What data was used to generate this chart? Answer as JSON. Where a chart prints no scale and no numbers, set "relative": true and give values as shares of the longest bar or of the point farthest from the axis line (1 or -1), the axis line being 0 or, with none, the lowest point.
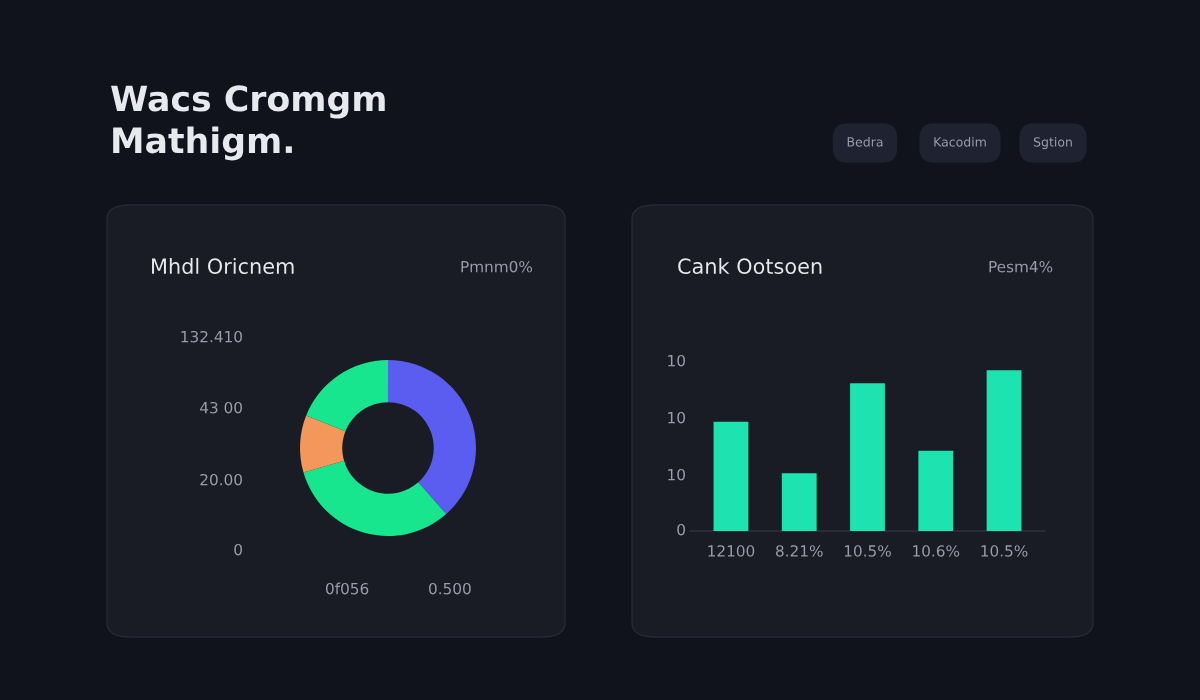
{
  "chart_data": [
    {
      "type": "other",
      "title": "Wacs Cromgm\nMathigm.",
      "annotations": [
        "Bedra",
        "Kacodim",
        "Sgtion"
      ]
    },
    {
      "type": "donut",
      "title": "Mhdl Oricnem",
      "categories": [
        null,
        null,
        null,
        null
      ],
      "values": [
        38.5,
        32,
        10.5,
        19
      ],
      "colors": [
        "#5b5cf0",
        "#17e68f",
        "#f4975a",
        "#17e68f"
      ],
      "annotations": [
        "Pmnm0%",
        "132.410",
        "43 00",
        "20.00",
        "0",
        "0f056",
        "0.500"
      ]
    },
    {
      "type": "bar",
      "title": "Cank Ootsoen",
      "categories": [
        "12100",
        "8.21%",
        "10.5%",
        "10.6%",
        "10.5%"
      ],
      "values": [
        0.68,
        0.36,
        0.92,
        0.5,
        1
      ],
      "color": "#1de3b0",
      "relative": true,
      "annotations": [
        "Pesm4%",
        "10",
        "10",
        "10",
        "0"
      ]
    }
  ]
}
